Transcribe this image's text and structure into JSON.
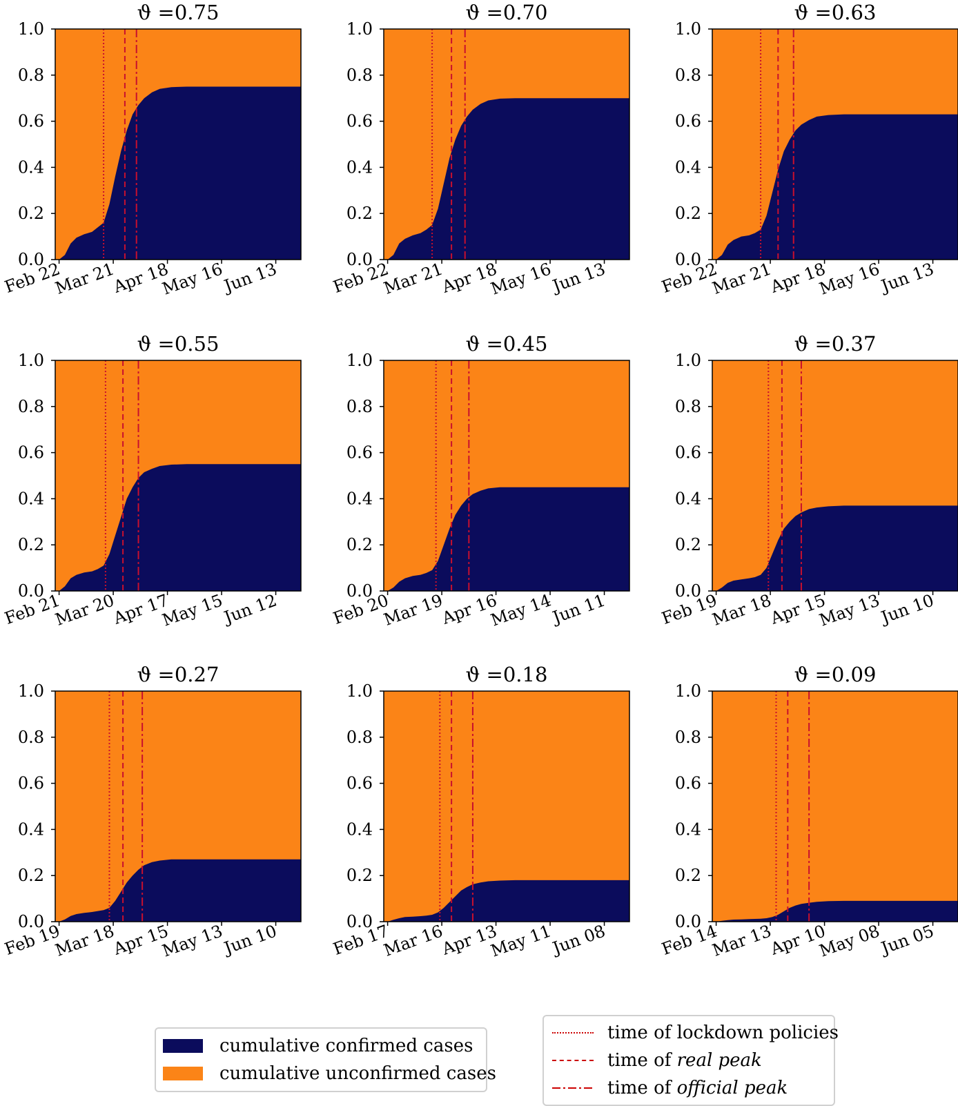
{
  "figure": {
    "colors": {
      "confirmed": "#0b0c5c",
      "unconfirmed": "#fb8417",
      "vlines": "#c8102e"
    }
  },
  "chart_data": [
    {
      "type": "area",
      "title": "ϑ =0.75",
      "theta": 0.75,
      "ylim": [
        0,
        1.0
      ],
      "yticks": [
        "0.0",
        "0.2",
        "0.4",
        "0.6",
        "0.8",
        "1.0"
      ],
      "xticks": [
        "Feb 22",
        "Mar 21",
        "Apr 18",
        "May 16",
        "Jun 13"
      ],
      "x_range_days": [
        -2,
        125
      ],
      "xtick_days": [
        0,
        28,
        56,
        84,
        112
      ],
      "confirmed_curve": {
        "x_days": [
          0,
          3,
          6,
          9,
          13,
          17,
          20,
          23,
          26,
          29,
          32,
          35,
          38,
          41,
          44,
          48,
          52,
          58,
          66,
          75,
          90,
          110,
          125
        ],
        "y": [
          0,
          0.02,
          0.07,
          0.095,
          0.11,
          0.12,
          0.14,
          0.16,
          0.24,
          0.36,
          0.47,
          0.56,
          0.63,
          0.67,
          0.7,
          0.725,
          0.74,
          0.748,
          0.75,
          0.75,
          0.75,
          0.75,
          0.75
        ]
      },
      "vlines": {
        "lockdown": 23,
        "real_peak": 34,
        "official_peak": 40
      }
    },
    {
      "type": "area",
      "title": "ϑ =0.70",
      "theta": 0.7,
      "ylim": [
        0,
        1.0
      ],
      "yticks": [
        "0.0",
        "0.2",
        "0.4",
        "0.6",
        "0.8",
        "1.0"
      ],
      "xticks": [
        "Feb 22",
        "Mar 21",
        "Apr 18",
        "May 16",
        "Jun 13"
      ],
      "x_range_days": [
        -2,
        125
      ],
      "xtick_days": [
        0,
        28,
        56,
        84,
        112
      ],
      "confirmed_curve": {
        "x_days": [
          0,
          3,
          6,
          9,
          13,
          17,
          20,
          23,
          26,
          29,
          32,
          35,
          38,
          41,
          44,
          48,
          52,
          58,
          66,
          75,
          90,
          110,
          125
        ],
        "y": [
          0,
          0.02,
          0.07,
          0.09,
          0.105,
          0.115,
          0.13,
          0.15,
          0.22,
          0.33,
          0.44,
          0.52,
          0.58,
          0.62,
          0.65,
          0.675,
          0.69,
          0.698,
          0.7,
          0.7,
          0.7,
          0.7,
          0.7
        ]
      },
      "vlines": {
        "lockdown": 23,
        "real_peak": 33,
        "official_peak": 40
      }
    },
    {
      "type": "area",
      "title": "ϑ =0.63",
      "theta": 0.63,
      "ylim": [
        0,
        1.0
      ],
      "yticks": [
        "0.0",
        "0.2",
        "0.4",
        "0.6",
        "0.8",
        "1.0"
      ],
      "xticks": [
        "Feb 22",
        "Mar 21",
        "Apr 18",
        "May 16",
        "Jun 13"
      ],
      "x_range_days": [
        -2,
        125
      ],
      "xtick_days": [
        0,
        28,
        56,
        84,
        112
      ],
      "confirmed_curve": {
        "x_days": [
          0,
          3,
          6,
          9,
          13,
          17,
          20,
          23,
          26,
          29,
          32,
          35,
          38,
          41,
          44,
          48,
          52,
          58,
          66,
          75,
          90,
          110,
          125
        ],
        "y": [
          0,
          0.02,
          0.065,
          0.085,
          0.1,
          0.105,
          0.115,
          0.13,
          0.19,
          0.29,
          0.39,
          0.47,
          0.52,
          0.56,
          0.585,
          0.605,
          0.62,
          0.627,
          0.63,
          0.63,
          0.63,
          0.63,
          0.63
        ]
      },
      "vlines": {
        "lockdown": 23,
        "real_peak": 32,
        "official_peak": 40
      }
    },
    {
      "type": "area",
      "title": "ϑ =0.55",
      "theta": 0.55,
      "ylim": [
        0,
        1.0
      ],
      "yticks": [
        "0.0",
        "0.2",
        "0.4",
        "0.6",
        "0.8",
        "1.0"
      ],
      "xticks": [
        "Feb 21",
        "Mar 20",
        "Apr 17",
        "May 15",
        "Jun 12"
      ],
      "x_range_days": [
        -2,
        125
      ],
      "xtick_days": [
        0,
        28,
        56,
        84,
        112
      ],
      "confirmed_curve": {
        "x_days": [
          0,
          3,
          6,
          9,
          13,
          17,
          20,
          23,
          26,
          29,
          32,
          35,
          38,
          41,
          44,
          48,
          52,
          58,
          66,
          75,
          90,
          110,
          125
        ],
        "y": [
          0,
          0.02,
          0.055,
          0.07,
          0.08,
          0.085,
          0.095,
          0.11,
          0.16,
          0.24,
          0.32,
          0.4,
          0.45,
          0.49,
          0.515,
          0.53,
          0.542,
          0.548,
          0.55,
          0.55,
          0.55,
          0.55,
          0.55
        ]
      },
      "vlines": {
        "lockdown": 24,
        "real_peak": 33,
        "official_peak": 41
      }
    },
    {
      "type": "area",
      "title": "ϑ =0.45",
      "theta": 0.45,
      "ylim": [
        0,
        1.0
      ],
      "yticks": [
        "0.0",
        "0.2",
        "0.4",
        "0.6",
        "0.8",
        "1.0"
      ],
      "xticks": [
        "Feb 20",
        "Mar 19",
        "Apr 16",
        "May 14",
        "Jun 11"
      ],
      "x_range_days": [
        -2,
        125
      ],
      "xtick_days": [
        0,
        28,
        56,
        84,
        112
      ],
      "confirmed_curve": {
        "x_days": [
          0,
          3,
          6,
          9,
          13,
          17,
          20,
          23,
          26,
          29,
          32,
          35,
          38,
          41,
          44,
          48,
          52,
          58,
          66,
          75,
          90,
          110,
          125
        ],
        "y": [
          0,
          0.015,
          0.04,
          0.055,
          0.065,
          0.07,
          0.078,
          0.09,
          0.13,
          0.2,
          0.27,
          0.33,
          0.37,
          0.4,
          0.42,
          0.435,
          0.445,
          0.45,
          0.45,
          0.45,
          0.45,
          0.45,
          0.45
        ]
      },
      "vlines": {
        "lockdown": 25,
        "real_peak": 33,
        "official_peak": 42
      }
    },
    {
      "type": "area",
      "title": "ϑ =0.37",
      "theta": 0.37,
      "ylim": [
        0,
        1.0
      ],
      "yticks": [
        "0.0",
        "0.2",
        "0.4",
        "0.6",
        "0.8",
        "1.0"
      ],
      "xticks": [
        "Feb 19",
        "Mar 18",
        "Apr 15",
        "May 13",
        "Jun 10"
      ],
      "x_range_days": [
        -2,
        125
      ],
      "xtick_days": [
        0,
        28,
        56,
        84,
        112
      ],
      "confirmed_curve": {
        "x_days": [
          0,
          3,
          6,
          9,
          13,
          17,
          20,
          23,
          26,
          29,
          32,
          35,
          38,
          41,
          44,
          48,
          52,
          58,
          66,
          75,
          90,
          110,
          125
        ],
        "y": [
          0,
          0.015,
          0.035,
          0.045,
          0.05,
          0.055,
          0.06,
          0.07,
          0.1,
          0.16,
          0.22,
          0.27,
          0.3,
          0.325,
          0.34,
          0.355,
          0.362,
          0.367,
          0.37,
          0.37,
          0.37,
          0.37,
          0.37
        ]
      },
      "vlines": {
        "lockdown": 27,
        "real_peak": 34,
        "official_peak": 44
      }
    },
    {
      "type": "area",
      "title": "ϑ =0.27",
      "theta": 0.27,
      "ylim": [
        0,
        1.0
      ],
      "yticks": [
        "0.0",
        "0.2",
        "0.4",
        "0.6",
        "0.8",
        "1.0"
      ],
      "xticks": [
        "Feb 19",
        "Mar 18",
        "Apr 15",
        "May 13",
        "Jun 10"
      ],
      "x_range_days": [
        -2,
        125
      ],
      "xtick_days": [
        0,
        28,
        56,
        84,
        112
      ],
      "confirmed_curve": {
        "x_days": [
          0,
          3,
          6,
          9,
          13,
          17,
          20,
          23,
          26,
          29,
          32,
          35,
          38,
          41,
          44,
          48,
          52,
          58,
          66,
          75,
          90,
          110,
          125
        ],
        "y": [
          0,
          0.01,
          0.025,
          0.033,
          0.038,
          0.042,
          0.046,
          0.05,
          0.06,
          0.09,
          0.13,
          0.17,
          0.2,
          0.225,
          0.245,
          0.258,
          0.265,
          0.27,
          0.27,
          0.27,
          0.27,
          0.27,
          0.27
        ]
      },
      "vlines": {
        "lockdown": 26,
        "real_peak": 33,
        "official_peak": 43
      }
    },
    {
      "type": "area",
      "title": "ϑ =0.18",
      "theta": 0.18,
      "ylim": [
        0,
        1.0
      ],
      "yticks": [
        "0.0",
        "0.2",
        "0.4",
        "0.6",
        "0.8",
        "1.0"
      ],
      "xticks": [
        "Feb 17",
        "Mar 16",
        "Apr 13",
        "May 11",
        "Jun 08"
      ],
      "x_range_days": [
        -2,
        125
      ],
      "xtick_days": [
        0,
        28,
        56,
        84,
        112
      ],
      "confirmed_curve": {
        "x_days": [
          0,
          3,
          6,
          9,
          13,
          17,
          20,
          23,
          26,
          29,
          32,
          35,
          38,
          41,
          44,
          48,
          52,
          58,
          66,
          75,
          90,
          110,
          125
        ],
        "y": [
          0,
          0.008,
          0.015,
          0.02,
          0.022,
          0.024,
          0.026,
          0.03,
          0.04,
          0.06,
          0.085,
          0.11,
          0.135,
          0.15,
          0.162,
          0.17,
          0.175,
          0.178,
          0.18,
          0.18,
          0.18,
          0.18,
          0.18
        ]
      },
      "vlines": {
        "lockdown": 27,
        "real_peak": 33,
        "official_peak": 44
      }
    },
    {
      "type": "area",
      "title": "ϑ =0.09",
      "theta": 0.09,
      "ylim": [
        0,
        1.0
      ],
      "yticks": [
        "0.0",
        "0.2",
        "0.4",
        "0.6",
        "0.8",
        "1.0"
      ],
      "xticks": [
        "Feb 14",
        "Mar 13",
        "Apr 10",
        "May 08",
        "Jun 05"
      ],
      "x_range_days": [
        -2,
        125
      ],
      "xtick_days": [
        0,
        28,
        56,
        84,
        112
      ],
      "confirmed_curve": {
        "x_days": [
          0,
          3,
          6,
          9,
          13,
          17,
          20,
          23,
          26,
          29,
          32,
          35,
          38,
          41,
          44,
          48,
          52,
          58,
          66,
          75,
          90,
          110,
          125
        ],
        "y": [
          0,
          0.004,
          0.007,
          0.009,
          0.01,
          0.011,
          0.012,
          0.013,
          0.015,
          0.02,
          0.03,
          0.045,
          0.06,
          0.07,
          0.077,
          0.082,
          0.086,
          0.089,
          0.09,
          0.09,
          0.09,
          0.09,
          0.09
        ]
      },
      "vlines": {
        "lockdown": 31,
        "real_peak": 37,
        "official_peak": 48
      }
    }
  ],
  "legend_areas": {
    "confirmed_label": "cumulative confirmed cases",
    "unconfirmed_label": "cumulative unconfirmed cases"
  },
  "legend_lines": {
    "lockdown_label": "time of lockdown policies",
    "real_peak_prefix": "time of ",
    "real_peak_emph": "real peak",
    "official_peak_prefix": "time of ",
    "official_peak_emph": "official peak"
  }
}
